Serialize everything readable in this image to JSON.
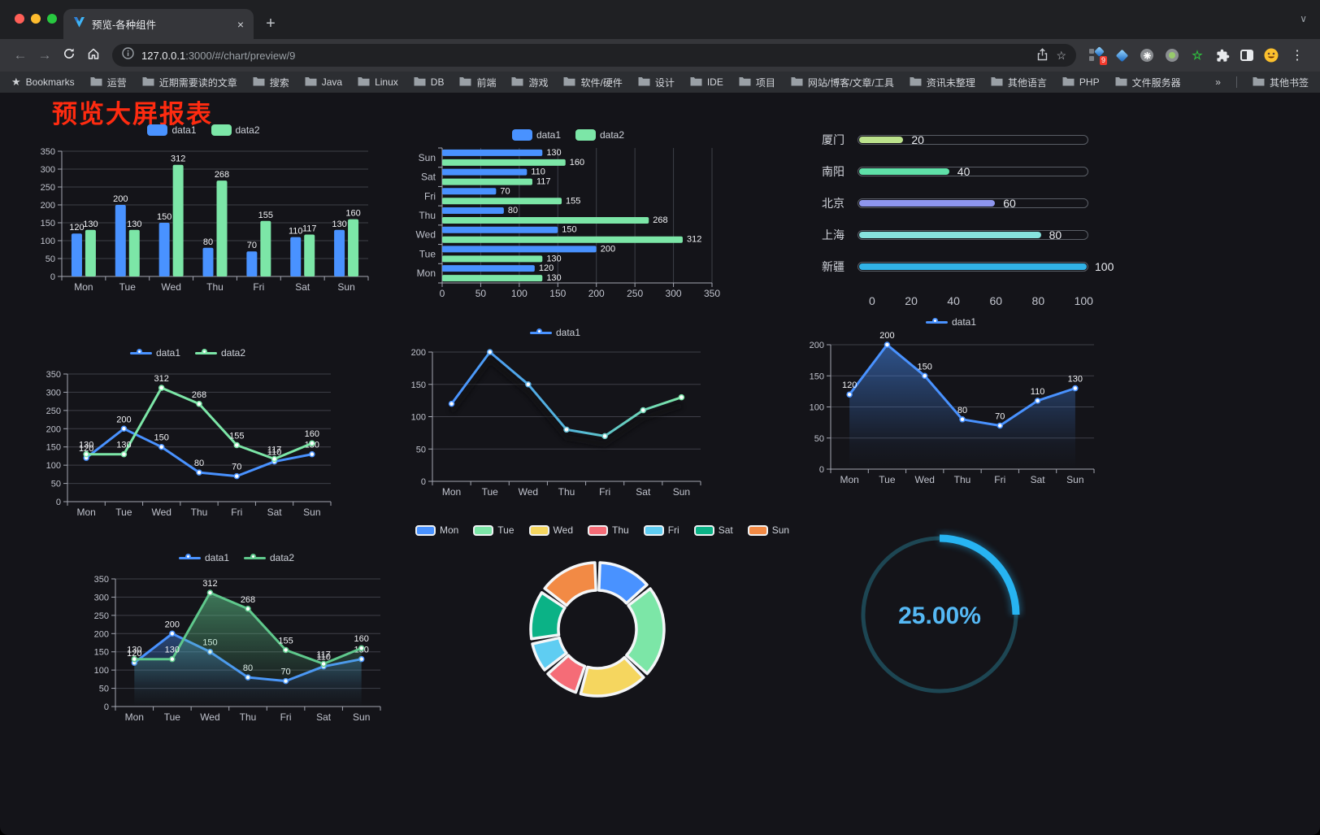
{
  "window": {
    "traffic_lights": [
      "#ff5f57",
      "#febc2e",
      "#28c840"
    ],
    "tab": {
      "title": "预览-各种组件",
      "close": "×"
    },
    "new_tab_button": "+",
    "toolbar": {
      "url_domain": "127.0.0.1",
      "url_path": ":3000/#/chart/preview/9",
      "extension_badge": "9"
    },
    "bookmarks_bar": {
      "label": "Bookmarks",
      "folders": [
        "运营",
        "近期需要读的文章",
        "搜索",
        "Java",
        "Linux",
        "DB",
        "前端",
        "游戏",
        "软件/硬件",
        "设计",
        "IDE",
        "项目",
        "网站/博客/文章/工具",
        "资讯未整理",
        "其他语言",
        "PHP",
        "文件服务器"
      ],
      "overflow": "»",
      "other": "其他书签"
    }
  },
  "page": {
    "title": "预览大屏报表",
    "title_color": "#fe2b10",
    "background": "#141419"
  },
  "chart_data": [
    {
      "id": "bar-vertical",
      "type": "bar",
      "categories": [
        "Mon",
        "Tue",
        "Wed",
        "Thu",
        "Fri",
        "Sat",
        "Sun"
      ],
      "series": [
        {
          "name": "data1",
          "color": "#4992ff",
          "values": [
            120,
            200,
            150,
            80,
            70,
            110,
            130
          ]
        },
        {
          "name": "data2",
          "color": "#7ce6a7",
          "values": [
            130,
            130,
            312,
            268,
            155,
            117,
            160
          ]
        }
      ],
      "ylim": [
        0,
        350
      ],
      "yticks": [
        0,
        50,
        100,
        150,
        200,
        250,
        300,
        350
      ],
      "grid": true,
      "legend_position": "top"
    },
    {
      "id": "bar-horizontal",
      "type": "bar",
      "orientation": "horizontal",
      "categories": [
        "Mon",
        "Tue",
        "Wed",
        "Thu",
        "Fri",
        "Sat",
        "Sun"
      ],
      "series": [
        {
          "name": "data1",
          "color": "#4992ff",
          "values": [
            120,
            200,
            150,
            80,
            70,
            110,
            130
          ]
        },
        {
          "name": "data2",
          "color": "#7ce6a7",
          "values": [
            130,
            130,
            312,
            268,
            155,
            117,
            160
          ]
        }
      ],
      "xlim": [
        0,
        350
      ],
      "xticks": [
        0,
        50,
        100,
        150,
        200,
        250,
        300,
        350
      ],
      "grid": true,
      "legend_position": "top"
    },
    {
      "id": "city-progress",
      "type": "bar",
      "subtype": "progress-pills",
      "categories": [
        "厦门",
        "南阳",
        "北京",
        "上海",
        "新疆"
      ],
      "values": [
        20,
        40,
        60,
        80,
        100
      ],
      "colors": [
        "#bce28c",
        "#5fe0a8",
        "#8e96ee",
        "#87e2dd",
        "#31b2e6"
      ],
      "xlim": [
        0,
        100
      ],
      "xticks": [
        0,
        20,
        40,
        60,
        80,
        100
      ]
    },
    {
      "id": "line-two-series",
      "type": "line",
      "categories": [
        "Mon",
        "Tue",
        "Wed",
        "Thu",
        "Fri",
        "Sat",
        "Sun"
      ],
      "series": [
        {
          "name": "data1",
          "color": "#4992ff",
          "values": [
            120,
            200,
            150,
            80,
            70,
            110,
            130
          ]
        },
        {
          "name": "data2",
          "color": "#7ce6a7",
          "values": [
            130,
            130,
            312,
            268,
            155,
            117,
            160
          ]
        }
      ],
      "ylim": [
        0,
        350
      ],
      "yticks": [
        0,
        50,
        100,
        150,
        200,
        250,
        300,
        350
      ],
      "labels": true,
      "legend_position": "top"
    },
    {
      "id": "line-gradient",
      "type": "line",
      "categories": [
        "Mon",
        "Tue",
        "Wed",
        "Thu",
        "Fri",
        "Sat",
        "Sun"
      ],
      "series": [
        {
          "name": "data1",
          "gradient": [
            "#4992ff",
            "#7ce6a7"
          ],
          "values": [
            120,
            200,
            150,
            80,
            70,
            110,
            130
          ]
        }
      ],
      "ylim": [
        0,
        200
      ],
      "yticks": [
        0,
        50,
        100,
        150,
        200
      ],
      "labels": false,
      "shadow": true,
      "legend_position": "top"
    },
    {
      "id": "area-single",
      "type": "area",
      "categories": [
        "Mon",
        "Tue",
        "Wed",
        "Thu",
        "Fri",
        "Sat",
        "Sun"
      ],
      "series": [
        {
          "name": "data1",
          "color": "#4992ff",
          "fillOpacity": 0.5,
          "values": [
            120,
            200,
            150,
            80,
            70,
            110,
            130
          ]
        }
      ],
      "ylim": [
        0,
        200
      ],
      "yticks": [
        0,
        50,
        100,
        150,
        200
      ],
      "labels": true,
      "legend_position": "top"
    },
    {
      "id": "area-two-series",
      "type": "area",
      "categories": [
        "Mon",
        "Tue",
        "Wed",
        "Thu",
        "Fri",
        "Sat",
        "Sun"
      ],
      "series": [
        {
          "name": "data1",
          "color": "#4992ff",
          "fillOpacity": 0.4,
          "values": [
            120,
            200,
            150,
            80,
            70,
            110,
            130
          ]
        },
        {
          "name": "data2",
          "color": "#5fc88c",
          "fillOpacity": 0.55,
          "values": [
            130,
            130,
            312,
            268,
            155,
            117,
            160
          ]
        }
      ],
      "ylim": [
        0,
        350
      ],
      "yticks": [
        0,
        50,
        100,
        150,
        200,
        250,
        300,
        350
      ],
      "labels": true,
      "legend_position": "top"
    },
    {
      "id": "donut-week",
      "type": "pie",
      "inner_radius": 0.58,
      "labels": [
        "Mon",
        "Tue",
        "Wed",
        "Thu",
        "Fri",
        "Sat",
        "Sun"
      ],
      "values": [
        120,
        200,
        150,
        80,
        70,
        110,
        130
      ],
      "colors": [
        "#4992ff",
        "#7ce6a7",
        "#f5d65f",
        "#f56c77",
        "#5fcdf2",
        "#0bb286",
        "#f28a45"
      ],
      "legend_position": "top"
    },
    {
      "id": "gauge-percent",
      "type": "gauge",
      "value": 25,
      "max": 100,
      "label": "25.00%",
      "progress_color": "#27b4f2",
      "track_color": "#1d4653",
      "text_color": "#55b8f4"
    }
  ]
}
